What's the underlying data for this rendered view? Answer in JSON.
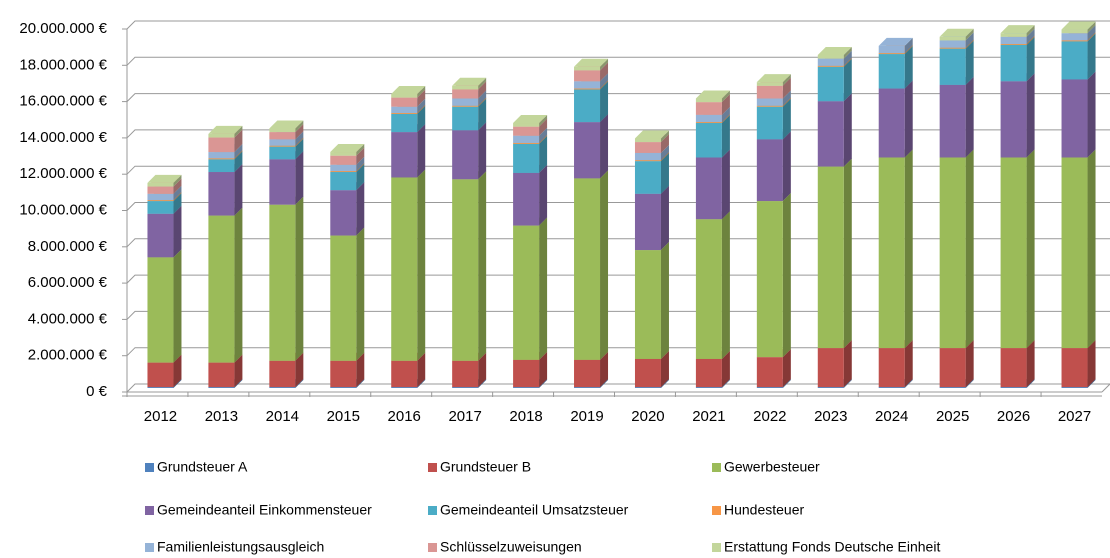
{
  "chart_data": {
    "type": "bar3d_stacked",
    "categories": [
      "2012",
      "2013",
      "2014",
      "2015",
      "2016",
      "2017",
      "2018",
      "2019",
      "2020",
      "2021",
      "2022",
      "2023",
      "2024",
      "2025",
      "2026",
      "2027"
    ],
    "series": [
      {
        "name": "Grundsteuer A",
        "color": "#4f81bd",
        "values": [
          50000,
          50000,
          50000,
          50000,
          50000,
          50000,
          50000,
          50000,
          50000,
          50000,
          50000,
          50000,
          50000,
          50000,
          50000,
          50000
        ]
      },
      {
        "name": "Grundsteuer B",
        "color": "#c0504d",
        "values": [
          1350000,
          1350000,
          1450000,
          1450000,
          1450000,
          1450000,
          1500000,
          1500000,
          1550000,
          1550000,
          1650000,
          2150000,
          2150000,
          2150000,
          2150000,
          2150000
        ]
      },
      {
        "name": "Gewerbesteuer",
        "color": "#9bbb59",
        "values": [
          5800000,
          8100000,
          8600000,
          6900000,
          10100000,
          10000000,
          7400000,
          10000000,
          6000000,
          7700000,
          8600000,
          10000000,
          10500000,
          10500000,
          10500000,
          10500000
        ]
      },
      {
        "name": "Gemeindeanteil Einkommensteuer",
        "color": "#8064a2",
        "values": [
          2400000,
          2400000,
          2500000,
          2500000,
          2500000,
          2700000,
          2900000,
          3100000,
          3100000,
          3400000,
          3400000,
          3600000,
          3800000,
          4000000,
          4200000,
          4300000
        ]
      },
      {
        "name": "Gemeindeanteil Umsatzsteuer",
        "color": "#4bacc6",
        "values": [
          700000,
          700000,
          700000,
          1000000,
          1000000,
          1300000,
          1600000,
          1800000,
          1800000,
          1900000,
          1800000,
          1900000,
          1900000,
          2000000,
          2000000,
          2100000
        ]
      },
      {
        "name": "Hundesteuer",
        "color": "#f79646",
        "values": [
          50000,
          50000,
          50000,
          50000,
          50000,
          50000,
          50000,
          50000,
          50000,
          50000,
          50000,
          50000,
          50000,
          50000,
          50000,
          50000
        ]
      },
      {
        "name": "Familienleistungsausgleich",
        "color": "#95b3d7",
        "values": [
          350000,
          350000,
          350000,
          350000,
          350000,
          400000,
          400000,
          400000,
          400000,
          400000,
          400000,
          400000,
          400000,
          400000,
          400000,
          400000
        ]
      },
      {
        "name": "Schlüsselzuweisungen",
        "color": "#da9694",
        "values": [
          400000,
          800000,
          400000,
          500000,
          500000,
          500000,
          500000,
          600000,
          600000,
          700000,
          700000,
          0,
          0,
          0,
          0,
          0
        ]
      },
      {
        "name": "Erstattung Fonds Deutsche Einheit",
        "color": "#c3d69b",
        "values": [
          200000,
          200000,
          200000,
          200000,
          200000,
          200000,
          200000,
          200000,
          200000,
          200000,
          200000,
          200000,
          0,
          200000,
          200000,
          200000
        ]
      }
    ],
    "ylim": [
      0,
      20000000
    ],
    "yticks": [
      {
        "value": 0,
        "label": "0 €"
      },
      {
        "value": 2000000,
        "label": "2.000.000 €"
      },
      {
        "value": 4000000,
        "label": "4.000.000 €"
      },
      {
        "value": 6000000,
        "label": "6.000.000 €"
      },
      {
        "value": 8000000,
        "label": "8.000.000 €"
      },
      {
        "value": 10000000,
        "label": "10.000.000 €"
      },
      {
        "value": 12000000,
        "label": "12.000.000 €"
      },
      {
        "value": 14000000,
        "label": "14.000.000 €"
      },
      {
        "value": 16000000,
        "label": "16.000.000 €"
      },
      {
        "value": 18000000,
        "label": "18.000.000 €"
      },
      {
        "value": 20000000,
        "label": "20.000.000 €"
      }
    ],
    "grid": true
  }
}
